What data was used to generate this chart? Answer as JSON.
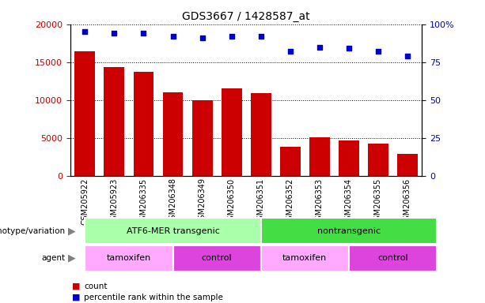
{
  "title": "GDS3667 / 1428587_at",
  "samples": [
    "GSM205922",
    "GSM205923",
    "GSM206335",
    "GSM206348",
    "GSM206349",
    "GSM206350",
    "GSM206351",
    "GSM206352",
    "GSM206353",
    "GSM206354",
    "GSM206355",
    "GSM206356"
  ],
  "counts": [
    16400,
    14300,
    13700,
    11000,
    10000,
    11500,
    10900,
    3800,
    5100,
    4700,
    4200,
    2900
  ],
  "percentile_ranks": [
    95,
    94,
    94,
    92,
    91,
    92,
    92,
    82,
    85,
    84,
    82,
    79
  ],
  "bar_color": "#cc0000",
  "dot_color": "#0000cc",
  "ylim_left": [
    0,
    20000
  ],
  "ylim_right": [
    0,
    100
  ],
  "yticks_left": [
    0,
    5000,
    10000,
    15000,
    20000
  ],
  "yticks_right": [
    0,
    25,
    50,
    75,
    100
  ],
  "genotype_groups": [
    {
      "label": "ATF6-MER transgenic",
      "start": 0,
      "end": 6,
      "color": "#aaffaa"
    },
    {
      "label": "nontransgenic",
      "start": 6,
      "end": 12,
      "color": "#44dd44"
    }
  ],
  "agent_groups": [
    {
      "label": "tamoxifen",
      "start": 0,
      "end": 3,
      "color": "#ffaaff"
    },
    {
      "label": "control",
      "start": 3,
      "end": 6,
      "color": "#dd44dd"
    },
    {
      "label": "tamoxifen",
      "start": 6,
      "end": 9,
      "color": "#ffaaff"
    },
    {
      "label": "control",
      "start": 9,
      "end": 12,
      "color": "#dd44dd"
    }
  ],
  "genotype_label": "genotype/variation",
  "agent_label": "agent",
  "legend_count_label": "count",
  "legend_pct_label": "percentile rank within the sample"
}
